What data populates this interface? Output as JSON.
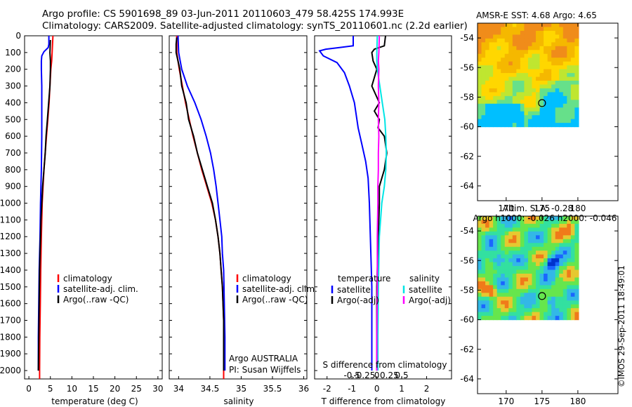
{
  "header": {
    "line1": "Argo profile: CS 5901698_89 03-Jun-2011 20110603_479 58.425S 174.993E",
    "line2": "Climatology: CARS2009. Satellite-adjusted climatology: synTS_20110601.nc (2.2d earlier)"
  },
  "footer": {
    "stamp": "©IMOS 29-Sep-2011 18:49:01"
  },
  "colors": {
    "climatology": "#ff0000",
    "satellite": "#0000ff",
    "argo": "#000000",
    "salinity_satellite": "#00e5e5",
    "salinity_argo": "#ff00ff",
    "map_sst": [
      "#00bfff",
      "#66e08a",
      "#bfe630",
      "#ffd700",
      "#f5b800",
      "#f08c1a"
    ],
    "map_sla": [
      "#0033cc",
      "#1a66ff",
      "#33b8e6",
      "#33e0a0",
      "#66e64d",
      "#e6c830",
      "#f07a1a"
    ]
  },
  "chart_data": [
    {
      "type": "line",
      "xlabel": "temperature (deg C)",
      "ylim": [
        2050,
        0
      ],
      "xlim": [
        -1,
        31
      ],
      "xticks": [
        "0",
        "5",
        "10",
        "15",
        "20",
        "25",
        "30"
      ],
      "yticks": [
        "0",
        "100",
        "200",
        "300",
        "400",
        "500",
        "600",
        "700",
        "800",
        "900",
        "1000",
        "1100",
        "1200",
        "1300",
        "1400",
        "1500",
        "1600",
        "1700",
        "1800",
        "1900",
        "2000"
      ],
      "legend": [
        "climatology",
        "satellite-adj. clim.",
        "Argo(..raw -QC)"
      ],
      "series": [
        {
          "name": "climatology",
          "color": "#ff0000",
          "points": [
            [
              5.6,
              0
            ],
            [
              5.5,
              50
            ],
            [
              5.4,
              100
            ],
            [
              5.3,
              150
            ],
            [
              5.1,
              200
            ],
            [
              4.9,
              300
            ],
            [
              4.7,
              400
            ],
            [
              4.4,
              500
            ],
            [
              4.1,
              600
            ],
            [
              3.8,
              700
            ],
            [
              3.5,
              800
            ],
            [
              3.3,
              900
            ],
            [
              3.1,
              1000
            ],
            [
              2.9,
              1200
            ],
            [
              2.75,
              1400
            ],
            [
              2.65,
              1600
            ],
            [
              2.55,
              1800
            ],
            [
              2.5,
              2000
            ],
            [
              2.5,
              2050
            ]
          ]
        },
        {
          "name": "satellite-adj. clim.",
          "color": "#0000ff",
          "points": [
            [
              4.65,
              0
            ],
            [
              4.65,
              50
            ],
            [
              4.5,
              70
            ],
            [
              3.5,
              95
            ],
            [
              3.0,
              120
            ],
            [
              2.9,
              150
            ],
            [
              2.9,
              200
            ],
            [
              3.0,
              300
            ],
            [
              3.0,
              400
            ],
            [
              3.0,
              500
            ],
            [
              3.0,
              600
            ],
            [
              2.95,
              700
            ],
            [
              2.9,
              800
            ],
            [
              2.8,
              900
            ],
            [
              2.7,
              1000
            ],
            [
              2.6,
              1200
            ],
            [
              2.4,
              1400
            ],
            [
              2.3,
              1600
            ],
            [
              2.2,
              1800
            ],
            [
              2.2,
              2000
            ]
          ]
        },
        {
          "name": "Argo(..raw -QC)",
          "color": "#000000",
          "points": [
            [
              5.0,
              25
            ],
            [
              4.9,
              100
            ],
            [
              5.0,
              150
            ],
            [
              5.0,
              200
            ],
            [
              4.9,
              300
            ],
            [
              4.6,
              400
            ],
            [
              4.3,
              500
            ],
            [
              4.0,
              600
            ],
            [
              3.8,
              700
            ],
            [
              3.5,
              800
            ],
            [
              3.2,
              900
            ],
            [
              3.0,
              1000
            ],
            [
              2.8,
              1100
            ],
            [
              2.7,
              1200
            ],
            [
              2.6,
              1300
            ],
            [
              2.5,
              1400
            ],
            [
              2.45,
              1500
            ],
            [
              2.4,
              1600
            ],
            [
              2.35,
              1700
            ],
            [
              2.3,
              1800
            ],
            [
              2.25,
              1900
            ],
            [
              2.2,
              2000
            ]
          ]
        }
      ]
    },
    {
      "type": "line",
      "xlabel": "salinity",
      "ylim": [
        2050,
        0
      ],
      "xlim": [
        33.85,
        36.05
      ],
      "xticks": [
        "34",
        "34.5",
        "35",
        "35.5",
        "36"
      ],
      "legend": [
        "climatology",
        "satellite-adj. clim.",
        "Argo(..raw -QC)"
      ],
      "annotations": [
        "Argo AUSTRALIA",
        "PI: Susan Wijffels"
      ],
      "series": [
        {
          "name": "climatology",
          "color": "#ff0000",
          "points": [
            [
              33.97,
              0
            ],
            [
              33.97,
              100
            ],
            [
              34.01,
              200
            ],
            [
              34.06,
              300
            ],
            [
              34.11,
              400
            ],
            [
              34.17,
              500
            ],
            [
              34.23,
              600
            ],
            [
              34.3,
              700
            ],
            [
              34.37,
              800
            ],
            [
              34.45,
              900
            ],
            [
              34.53,
              1000
            ],
            [
              34.59,
              1100
            ],
            [
              34.63,
              1200
            ],
            [
              34.66,
              1300
            ],
            [
              34.68,
              1400
            ],
            [
              34.7,
              1500
            ],
            [
              34.71,
              1600
            ],
            [
              34.72,
              1700
            ],
            [
              34.72,
              1800
            ],
            [
              34.72,
              1900
            ],
            [
              34.72,
              2050
            ]
          ]
        },
        {
          "name": "satellite-adj. clim.",
          "color": "#0000ff",
          "points": [
            [
              33.99,
              0
            ],
            [
              34.0,
              100
            ],
            [
              34.05,
              200
            ],
            [
              34.14,
              300
            ],
            [
              34.26,
              400
            ],
            [
              34.36,
              500
            ],
            [
              34.44,
              600
            ],
            [
              34.51,
              700
            ],
            [
              34.56,
              800
            ],
            [
              34.6,
              900
            ],
            [
              34.63,
              1000
            ],
            [
              34.66,
              1100
            ],
            [
              34.69,
              1200
            ],
            [
              34.7,
              1300
            ],
            [
              34.72,
              1400
            ],
            [
              34.73,
              1600
            ],
            [
              34.74,
              1800
            ],
            [
              34.74,
              2000
            ]
          ]
        },
        {
          "name": "Argo(..raw -QC)",
          "color": "#000000",
          "points": [
            [
              33.97,
              10
            ],
            [
              33.96,
              50
            ],
            [
              33.96,
              100
            ],
            [
              34.02,
              200
            ],
            [
              34.05,
              300
            ],
            [
              34.12,
              400
            ],
            [
              34.16,
              500
            ],
            [
              34.24,
              600
            ],
            [
              34.3,
              700
            ],
            [
              34.38,
              800
            ],
            [
              34.46,
              900
            ],
            [
              34.54,
              1000
            ],
            [
              34.59,
              1100
            ],
            [
              34.63,
              1200
            ],
            [
              34.66,
              1300
            ],
            [
              34.68,
              1400
            ],
            [
              34.7,
              1500
            ],
            [
              34.71,
              1600
            ],
            [
              34.72,
              1700
            ],
            [
              34.72,
              1800
            ],
            [
              34.72,
              1900
            ],
            [
              34.72,
              2000
            ]
          ]
        }
      ]
    },
    {
      "type": "line",
      "xlabel": "T difference from climatology",
      "xlabel2": "S difference from climatology",
      "ylim": [
        2050,
        0
      ],
      "xlim": [
        -2.5,
        3.0
      ],
      "xticks": [
        "-2",
        "-1",
        "0",
        "1",
        "2"
      ],
      "xticks2": [
        "-0.5",
        "-0.25",
        "0",
        "0.25",
        "0.5"
      ],
      "legend_titles": [
        "temperature",
        "salinity"
      ],
      "legend": [
        "satellite",
        "Argo(-adj)",
        "satellite",
        "Argo(-adj)"
      ],
      "series": [
        {
          "name": "satellite",
          "group": "temperature",
          "color": "#0000ff",
          "points": [
            [
              -0.95,
              0
            ],
            [
              -0.95,
              60
            ],
            [
              -1.5,
              70
            ],
            [
              -2.05,
              80
            ],
            [
              -2.3,
              90
            ],
            [
              -2.15,
              120
            ],
            [
              -1.6,
              160
            ],
            [
              -1.3,
              220
            ],
            [
              -1.1,
              300
            ],
            [
              -0.9,
              400
            ],
            [
              -0.75,
              550
            ],
            [
              -0.6,
              650
            ],
            [
              -0.45,
              750
            ],
            [
              -0.35,
              850
            ],
            [
              -0.3,
              1000
            ],
            [
              -0.2,
              1500
            ],
            [
              -0.2,
              2000
            ]
          ]
        },
        {
          "name": "Argo(-adj)",
          "group": "temperature",
          "color": "#000000",
          "points": [
            [
              0.35,
              0
            ],
            [
              0.3,
              60
            ],
            [
              -0.1,
              80
            ],
            [
              -0.2,
              100
            ],
            [
              -0.15,
              150
            ],
            [
              0,
              200
            ],
            [
              -0.2,
              300
            ],
            [
              0.1,
              400
            ],
            [
              -0.1,
              450
            ],
            [
              0.1,
              500
            ],
            [
              0.05,
              550
            ],
            [
              0.3,
              600
            ],
            [
              0.4,
              700
            ],
            [
              0.3,
              800
            ],
            [
              0.1,
              900
            ],
            [
              0.1,
              1000
            ],
            [
              0,
              1500
            ],
            [
              0,
              2000
            ]
          ]
        },
        {
          "name": "satellite",
          "group": "salinity",
          "color": "#00e5e5",
          "points": [
            [
              0.01,
              0
            ],
            [
              0.0,
              100
            ],
            [
              0.0,
              150
            ],
            [
              0.01,
              200
            ],
            [
              0.06,
              300
            ],
            [
              0.11,
              400
            ],
            [
              0.16,
              500
            ],
            [
              0.18,
              600
            ],
            [
              0.19,
              700
            ],
            [
              0.18,
              800
            ],
            [
              0.15,
              900
            ],
            [
              0.1,
              1000
            ],
            [
              0.05,
              1200
            ],
            [
              0.03,
              1500
            ],
            [
              0.02,
              1800
            ],
            [
              0.02,
              2000
            ]
          ]
        },
        {
          "name": "Argo(-adj)",
          "group": "salinity",
          "color": "#ff00ff",
          "points": [
            [
              0.05,
              0
            ],
            [
              0.04,
              100
            ],
            [
              0.03,
              150
            ],
            [
              0.04,
              200
            ],
            [
              0.03,
              300
            ],
            [
              0.04,
              400
            ],
            [
              0.03,
              500
            ],
            [
              0.04,
              600
            ],
            [
              0.03,
              700
            ],
            [
              0.03,
              800
            ],
            [
              0.02,
              900
            ],
            [
              0.02,
              1000
            ],
            [
              0.01,
              1200
            ],
            [
              0.01,
              1500
            ],
            [
              0.0,
              1800
            ],
            [
              0.0,
              2000
            ]
          ]
        }
      ]
    },
    {
      "type": "heatmap",
      "title": "AMSR-E SST: 4.68  Argo: 4.65",
      "xticks": [
        "170",
        "175",
        "180"
      ],
      "yticks": [
        "-54",
        "-56",
        "-58",
        "-60",
        "-62",
        "-64"
      ],
      "argo_position": [
        175.0,
        -58.4
      ]
    },
    {
      "type": "heatmap",
      "title": "Altim. SLA: -0.28",
      "subtitle": "Argo h1000: -0.026  h2000: -0.046",
      "xticks": [
        "170",
        "175",
        "180"
      ],
      "yticks": [
        "-54",
        "-56",
        "-58",
        "-60",
        "-62",
        "-64"
      ],
      "argo_position": [
        175.0,
        -58.4
      ]
    }
  ]
}
